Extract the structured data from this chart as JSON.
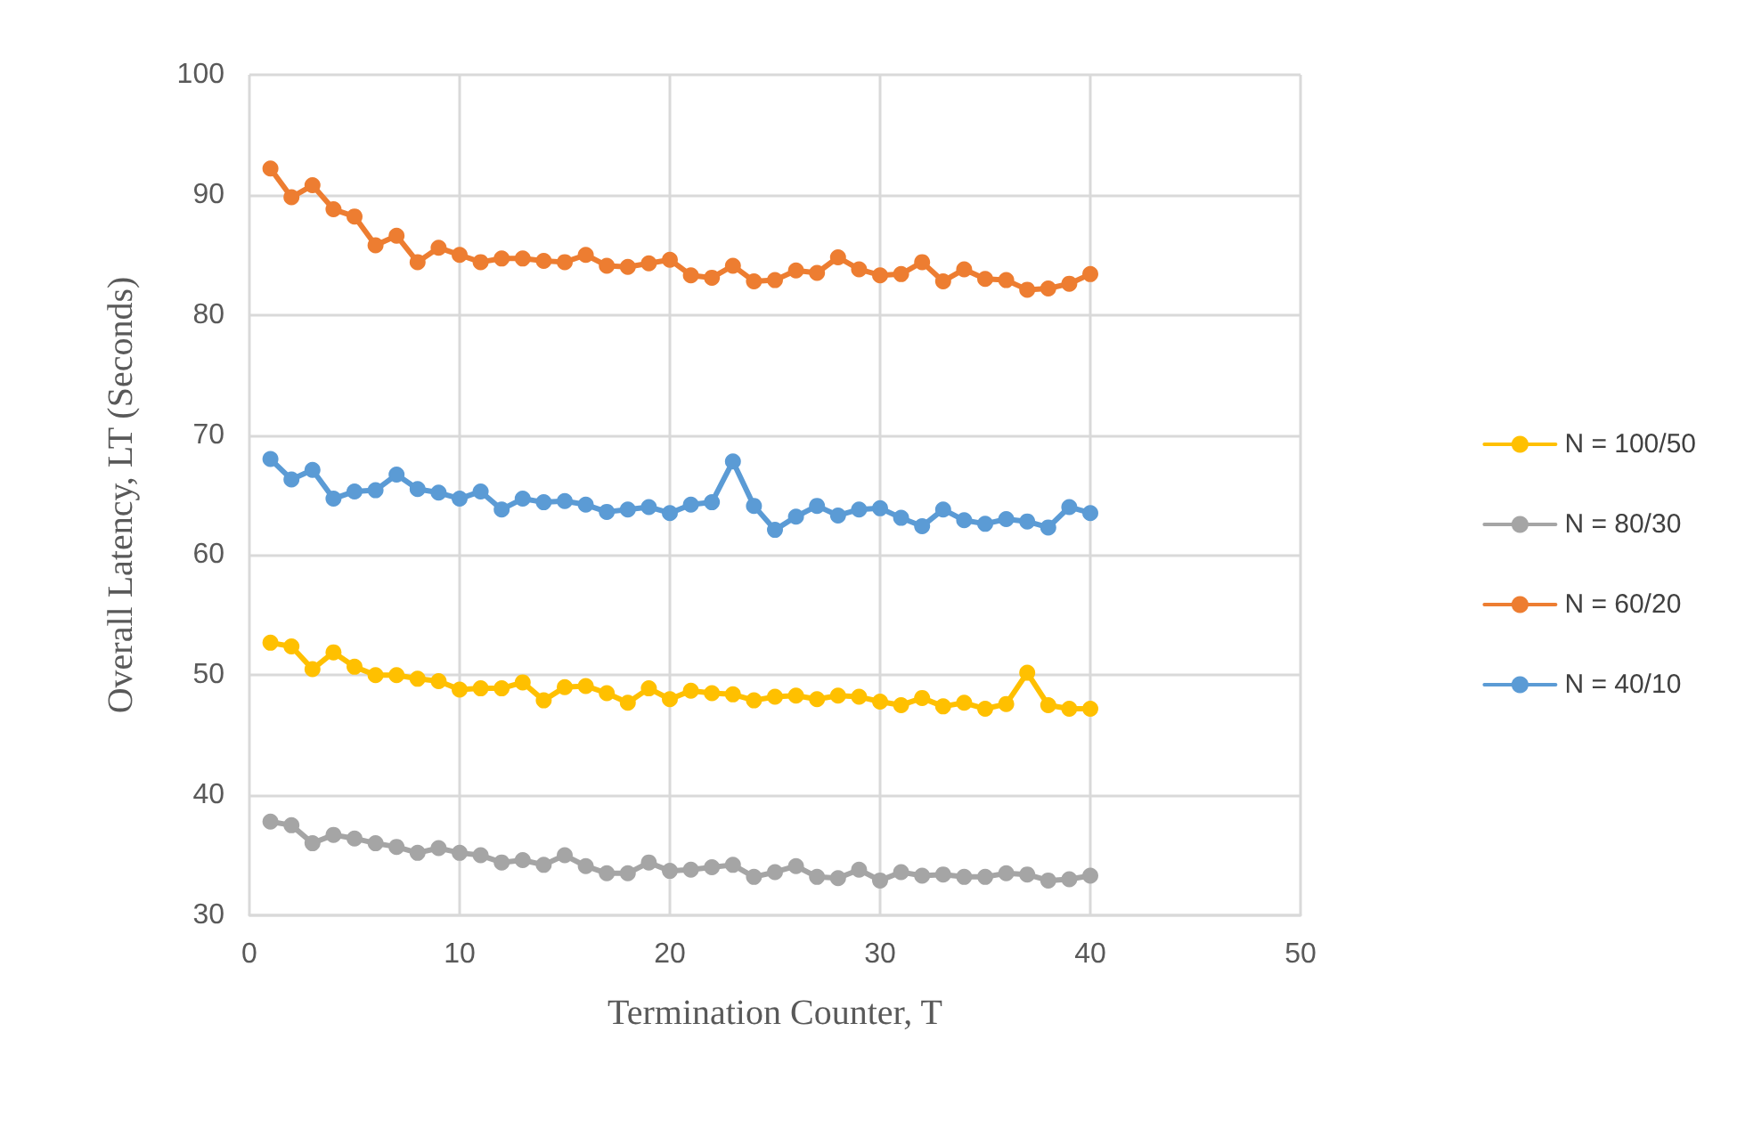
{
  "chart_data": {
    "type": "line",
    "xlabel": "Termination Counter, T",
    "ylabel": "Overall Latency, LT (Seconds)",
    "x": [
      1,
      2,
      3,
      4,
      5,
      6,
      7,
      8,
      9,
      10,
      11,
      12,
      13,
      14,
      15,
      16,
      17,
      18,
      19,
      20,
      21,
      22,
      23,
      24,
      25,
      26,
      27,
      28,
      29,
      30,
      31,
      32,
      33,
      34,
      35,
      36,
      37,
      38,
      39,
      40
    ],
    "series": [
      {
        "name": "N = 100/50",
        "color": "#ffc000",
        "values": [
          52.7,
          52.4,
          50.5,
          51.9,
          50.7,
          50.0,
          50.0,
          49.7,
          49.5,
          48.8,
          48.9,
          48.9,
          49.4,
          47.9,
          49.0,
          49.1,
          48.5,
          47.7,
          48.9,
          48.0,
          48.7,
          48.5,
          48.4,
          47.9,
          48.2,
          48.3,
          48.0,
          48.3,
          48.2,
          47.8,
          47.5,
          48.1,
          47.4,
          47.7,
          47.2,
          47.6,
          50.2,
          47.5,
          47.2,
          47.2
        ]
      },
      {
        "name": "N = 80/30",
        "color": "#a5a5a5",
        "values": [
          37.8,
          37.5,
          36.0,
          36.7,
          36.4,
          36.0,
          35.7,
          35.2,
          35.6,
          35.2,
          35.0,
          34.4,
          34.6,
          34.2,
          35.0,
          34.1,
          33.5,
          33.5,
          34.4,
          33.7,
          33.8,
          34.0,
          34.2,
          33.2,
          33.6,
          34.1,
          33.2,
          33.1,
          33.8,
          32.9,
          33.6,
          33.3,
          33.4,
          33.2,
          33.2,
          33.5,
          33.4,
          32.9,
          33.0,
          33.3
        ]
      },
      {
        "name": "N = 60/20",
        "color": "#ed7d31",
        "values": [
          92.2,
          89.8,
          90.8,
          88.8,
          88.2,
          85.8,
          86.6,
          84.4,
          85.6,
          85.0,
          84.4,
          84.7,
          84.7,
          84.5,
          84.4,
          85.0,
          84.1,
          84.0,
          84.3,
          84.6,
          83.3,
          83.1,
          84.1,
          82.8,
          82.9,
          83.7,
          83.5,
          84.8,
          83.8,
          83.3,
          83.4,
          84.4,
          82.8,
          83.8,
          83.0,
          82.9,
          82.1,
          82.2,
          82.6,
          83.4
        ]
      },
      {
        "name": "N = 40/10",
        "color": "#5b9bd5",
        "values": [
          68.0,
          66.3,
          67.1,
          64.7,
          65.3,
          65.4,
          66.7,
          65.5,
          65.2,
          64.7,
          65.3,
          63.8,
          64.7,
          64.4,
          64.5,
          64.2,
          63.6,
          63.8,
          64.0,
          63.5,
          64.2,
          64.4,
          67.8,
          64.1,
          62.1,
          63.2,
          64.1,
          63.3,
          63.8,
          63.9,
          63.1,
          62.4,
          63.8,
          62.9,
          62.6,
          63.0,
          62.8,
          62.3,
          64.0,
          63.5
        ]
      }
    ],
    "xlim": [
      0,
      50
    ],
    "xticks": [
      0,
      10,
      20,
      30,
      40,
      50
    ],
    "ylim": [
      30,
      100
    ],
    "yticks": [
      30,
      40,
      50,
      60,
      70,
      80,
      90,
      100
    ],
    "grid": true,
    "legend": "right",
    "marker": "circle",
    "line_style": "solid"
  }
}
